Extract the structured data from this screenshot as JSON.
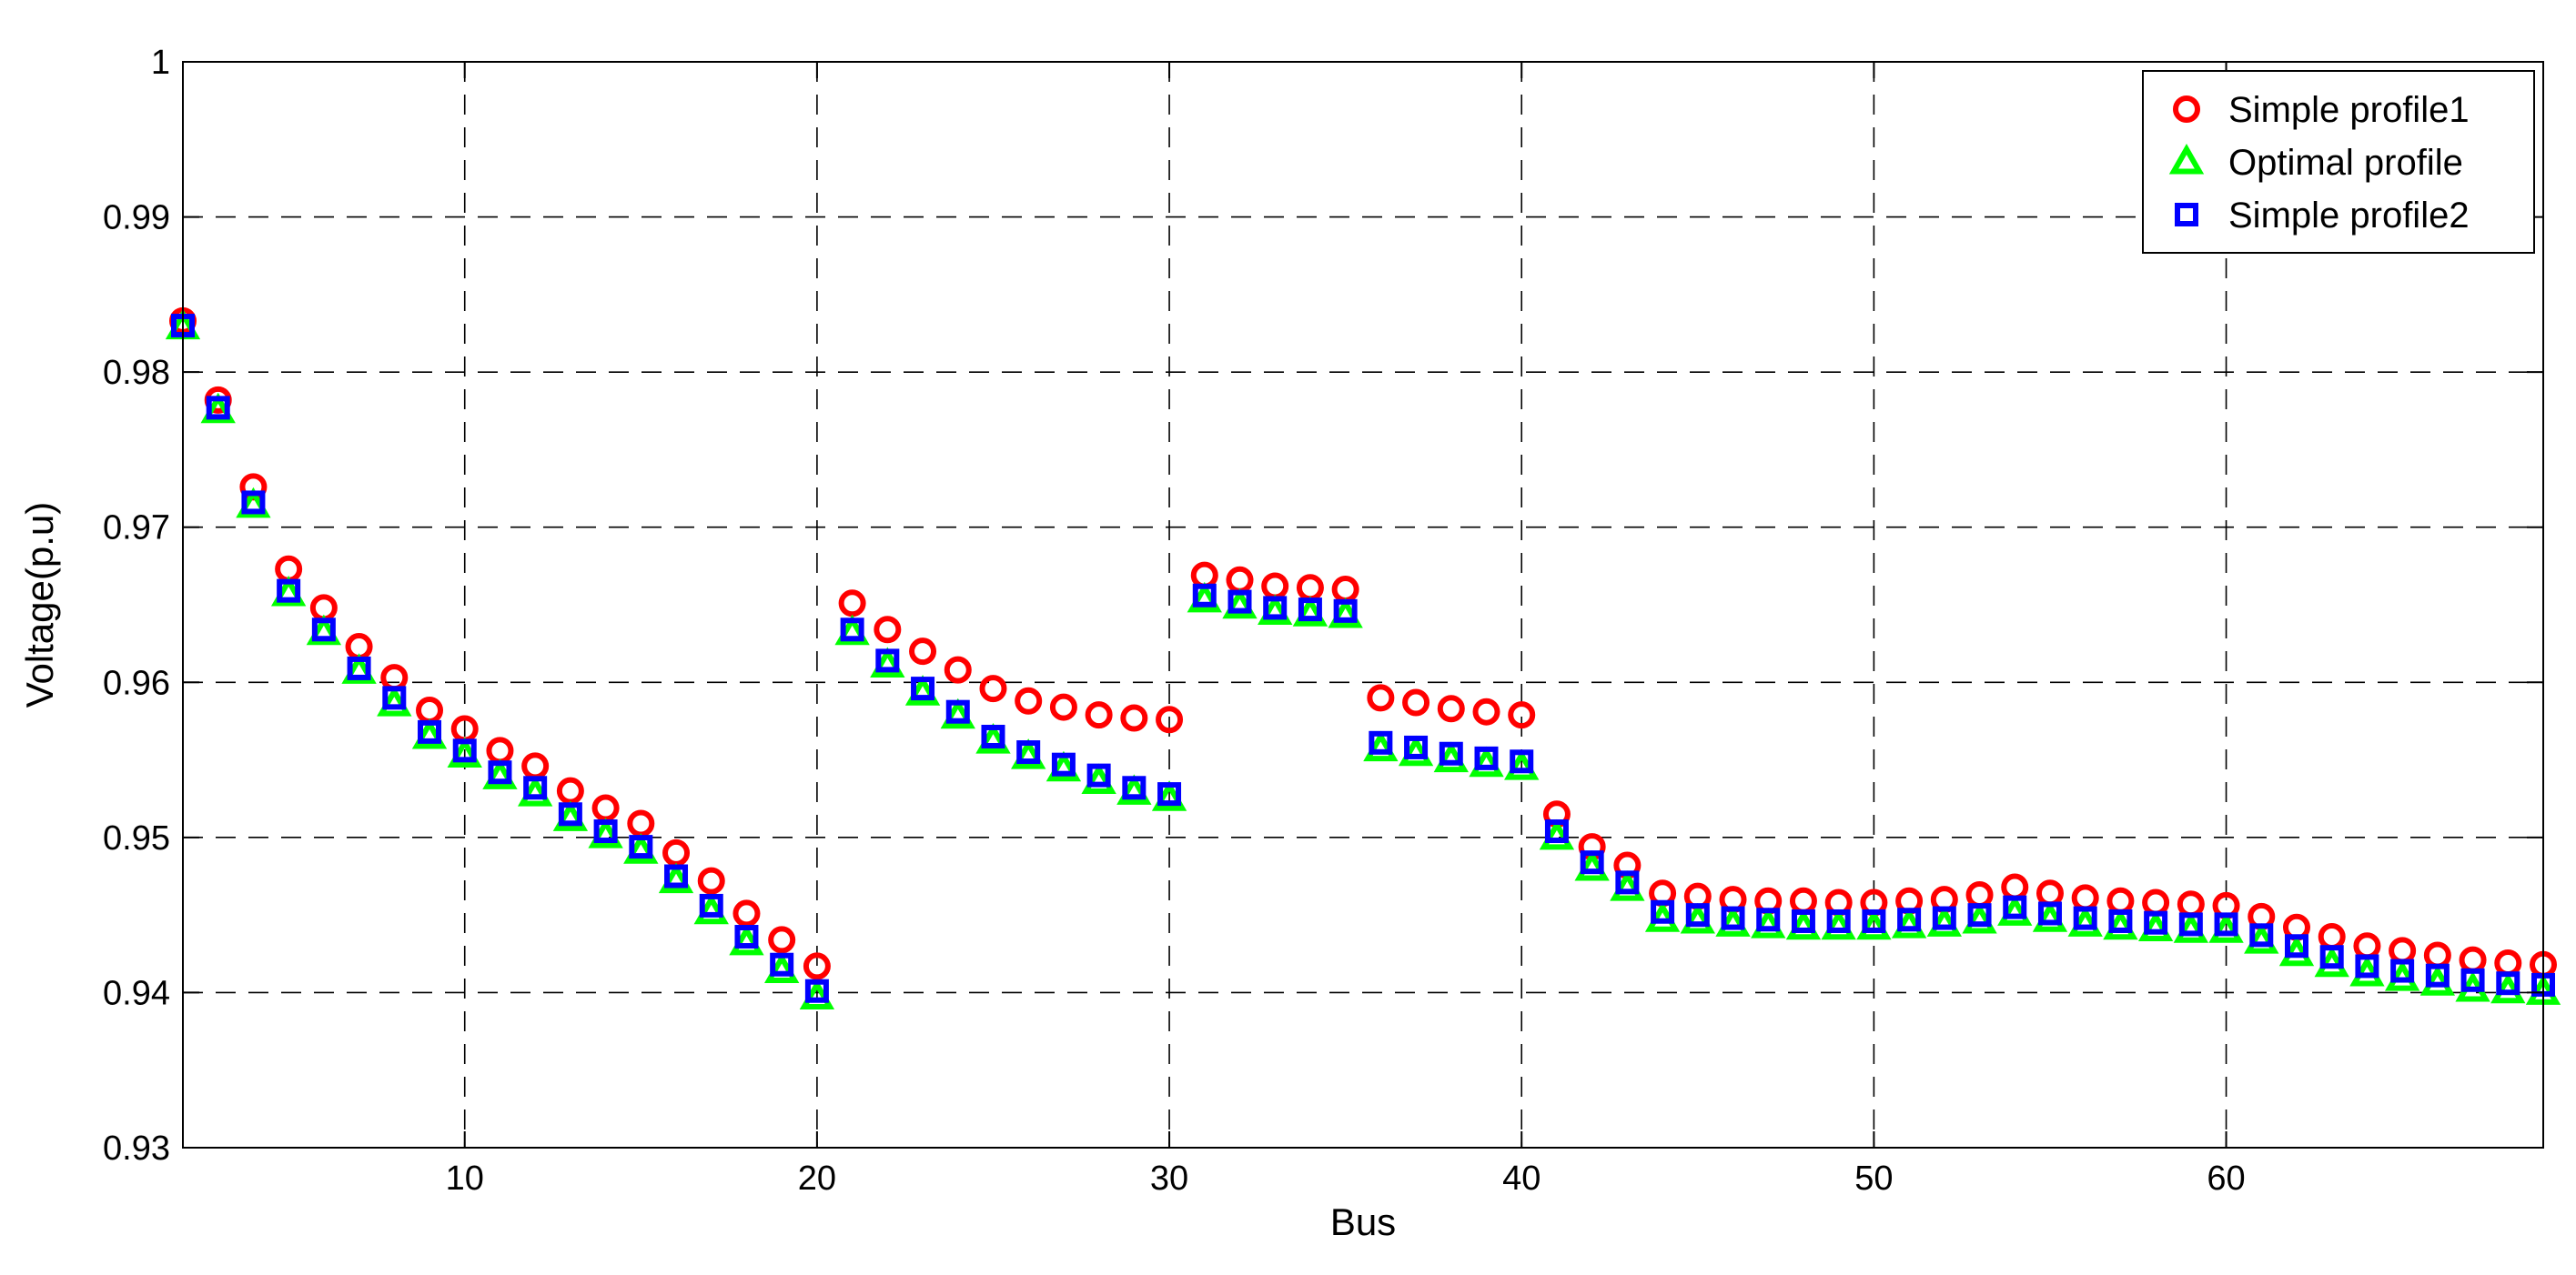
{
  "chart_data": {
    "type": "scatter",
    "title": "",
    "xlabel": "Bus",
    "ylabel": "Voltage(p.u)",
    "xlim": [
      2,
      69
    ],
    "ylim": [
      0.93,
      1.0
    ],
    "xticks": [
      10,
      20,
      30,
      40,
      50,
      60
    ],
    "yticks": [
      0.93,
      0.94,
      0.95,
      0.96,
      0.97,
      0.98,
      0.99,
      1.0
    ],
    "xtick_labels": [
      "10",
      "20",
      "30",
      "40",
      "50",
      "60"
    ],
    "ytick_labels": [
      "0.93",
      "0.94",
      "0.95",
      "0.96",
      "0.97",
      "0.98",
      "0.99",
      "1"
    ],
    "grid": true,
    "legend_position": "top-right",
    "x": [
      2,
      3,
      4,
      5,
      6,
      7,
      8,
      9,
      10,
      11,
      12,
      13,
      14,
      15,
      16,
      17,
      18,
      19,
      20,
      21,
      22,
      23,
      24,
      25,
      26,
      27,
      28,
      29,
      30,
      31,
      32,
      33,
      34,
      35,
      36,
      37,
      38,
      39,
      40,
      41,
      42,
      43,
      44,
      45,
      46,
      47,
      48,
      49,
      50,
      51,
      52,
      53,
      54,
      55,
      56,
      57,
      58,
      59,
      60,
      61,
      62,
      63,
      64,
      65,
      66,
      67,
      68,
      69
    ],
    "series": [
      {
        "name": "Simple profile1",
        "marker": "circle",
        "color": "#ff0000",
        "values": [
          0.9833,
          0.9782,
          0.9726,
          0.9673,
          0.9648,
          0.9623,
          0.9603,
          0.9582,
          0.957,
          0.9556,
          0.9546,
          0.953,
          0.9519,
          0.9509,
          0.949,
          0.9472,
          0.9451,
          0.9434,
          0.9417,
          0.9651,
          0.9634,
          0.962,
          0.9608,
          0.9596,
          0.9588,
          0.9584,
          0.9579,
          0.9577,
          0.9576,
          0.9669,
          0.9666,
          0.9662,
          0.9661,
          0.966,
          0.959,
          0.9587,
          0.9583,
          0.9581,
          0.9579,
          0.9515,
          0.9494,
          0.9482,
          0.9464,
          0.9462,
          0.946,
          0.9459,
          0.9459,
          0.9458,
          0.9458,
          0.9459,
          0.946,
          0.9463,
          0.9468,
          0.9464,
          0.9461,
          0.9459,
          0.9458,
          0.9457,
          0.9456,
          0.9449,
          0.9442,
          0.9436,
          0.943,
          0.9427,
          0.9424,
          0.9421,
          0.9419,
          0.9418
        ]
      },
      {
        "name": "Optimal profile",
        "marker": "triangle",
        "color": "#00ff00",
        "values": [
          0.9829,
          0.9775,
          0.9714,
          0.9657,
          0.9632,
          0.9607,
          0.9586,
          0.9565,
          0.9553,
          0.9539,
          0.9528,
          0.9512,
          0.9501,
          0.9491,
          0.9472,
          0.9452,
          0.9432,
          0.9414,
          0.9397,
          0.9632,
          0.9611,
          0.9593,
          0.9578,
          0.9562,
          0.9552,
          0.9544,
          0.9536,
          0.9529,
          0.9525,
          0.9653,
          0.9649,
          0.9645,
          0.9644,
          0.9643,
          0.9557,
          0.9554,
          0.955,
          0.9547,
          0.9545,
          0.95,
          0.948,
          0.9467,
          0.9447,
          0.9446,
          0.9444,
          0.9443,
          0.9442,
          0.9442,
          0.9442,
          0.9443,
          0.9444,
          0.9446,
          0.9451,
          0.9447,
          0.9444,
          0.9442,
          0.9441,
          0.944,
          0.944,
          0.9433,
          0.9425,
          0.9418,
          0.9412,
          0.9409,
          0.9406,
          0.9402,
          0.9401,
          0.94
        ]
      },
      {
        "name": "Simple profile2",
        "marker": "square",
        "color": "#0000ff",
        "values": [
          0.983,
          0.9777,
          0.9716,
          0.9659,
          0.9634,
          0.9609,
          0.959,
          0.9568,
          0.9556,
          0.9542,
          0.9532,
          0.9515,
          0.9504,
          0.9494,
          0.9475,
          0.9456,
          0.9436,
          0.9418,
          0.9401,
          0.9634,
          0.9614,
          0.9596,
          0.9581,
          0.9565,
          0.9555,
          0.9547,
          0.954,
          0.9532,
          0.9528,
          0.9656,
          0.9652,
          0.9648,
          0.9647,
          0.9646,
          0.9561,
          0.9558,
          0.9554,
          0.9551,
          0.9549,
          0.9504,
          0.9484,
          0.9471,
          0.9452,
          0.945,
          0.9448,
          0.9447,
          0.9446,
          0.9446,
          0.9446,
          0.9447,
          0.9448,
          0.945,
          0.9455,
          0.9451,
          0.9448,
          0.9446,
          0.9445,
          0.9444,
          0.9444,
          0.9437,
          0.943,
          0.9423,
          0.9417,
          0.9414,
          0.9411,
          0.9408,
          0.9406,
          0.9405
        ]
      }
    ]
  }
}
